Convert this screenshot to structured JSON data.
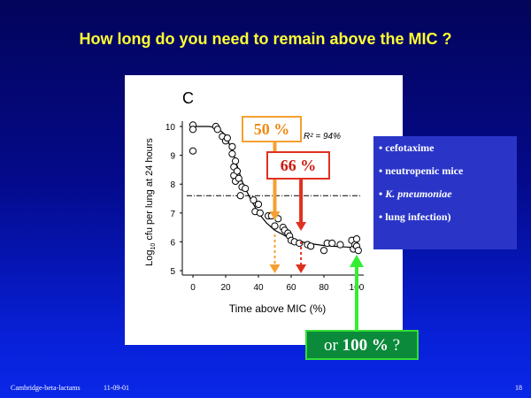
{
  "slide": {
    "title": "How long do you need to remain above the MIC ?",
    "footer_left": "Cambridge-beta-lactams",
    "footer_date": "11-09-01",
    "page_number": "18"
  },
  "callouts": {
    "box50": "50 %",
    "box66": "66 %",
    "box100_prefix": "or",
    "box100_value": "100 %",
    "box100_suffix": "?"
  },
  "info_items": [
    {
      "bullet": "•",
      "text": "cefotaxime",
      "italic": false
    },
    {
      "bullet": "•",
      "text": "neutropenic mice",
      "italic": false
    },
    {
      "bullet": "•",
      "text": "K. pneumoniae",
      "italic": true
    },
    {
      "bullet": "•",
      "text": "lung infection)",
      "italic": false
    }
  ],
  "colors": {
    "title": "#ffff33",
    "orange": "#f5a030",
    "red": "#e03020",
    "green": "#33dd33",
    "info_bg": "#2a35c8"
  },
  "chart_data": {
    "type": "scatter",
    "panel_label": "C",
    "xlabel": "Time above MIC (%)",
    "ylabel": "Log10 cfu per lung at 24 hours",
    "ylabel_main": "Log",
    "ylabel_sub": "10",
    "ylabel_rest": " cfu per lung at 24 hours",
    "annotation_r2": "R² = 94%",
    "xlim": [
      0,
      100
    ],
    "ylim": [
      5,
      10
    ],
    "xticks": [
      0,
      20,
      40,
      60,
      80,
      100
    ],
    "xtick_labels": [
      "0",
      "20",
      "40",
      "60",
      "80",
      "100"
    ],
    "yticks": [
      5,
      6,
      7,
      8,
      9,
      10
    ],
    "ytick_labels": [
      "5",
      "6",
      "7",
      "8",
      "9",
      "10"
    ],
    "stasis_line_y": 7.6,
    "markers": {
      "orange": 50,
      "red": 66,
      "green": 100
    },
    "points": [
      [
        0,
        10.05
      ],
      [
        0,
        9.9
      ],
      [
        0,
        9.15
      ],
      [
        14,
        10.0
      ],
      [
        15,
        9.9
      ],
      [
        18,
        9.65
      ],
      [
        20,
        9.5
      ],
      [
        21,
        9.6
      ],
      [
        24,
        9.3
      ],
      [
        24,
        9.05
      ],
      [
        25,
        8.6
      ],
      [
        25,
        8.3
      ],
      [
        26,
        8.8
      ],
      [
        26,
        8.1
      ],
      [
        27,
        8.45
      ],
      [
        28,
        8.2
      ],
      [
        29,
        7.6
      ],
      [
        30,
        7.9
      ],
      [
        32,
        7.85
      ],
      [
        37,
        7.45
      ],
      [
        38,
        7.05
      ],
      [
        40,
        7.3
      ],
      [
        41,
        7.0
      ],
      [
        46,
        6.9
      ],
      [
        48,
        6.9
      ],
      [
        50,
        6.55
      ],
      [
        52,
        6.8
      ],
      [
        55,
        6.5
      ],
      [
        56,
        6.4
      ],
      [
        58,
        6.3
      ],
      [
        59,
        6.2
      ],
      [
        60,
        6.05
      ],
      [
        62,
        6.0
      ],
      [
        65,
        5.95
      ],
      [
        70,
        5.9
      ],
      [
        72,
        5.85
      ],
      [
        80,
        5.7
      ],
      [
        82,
        5.95
      ],
      [
        85,
        5.95
      ],
      [
        90,
        5.9
      ],
      [
        97,
        6.05
      ],
      [
        98,
        5.75
      ],
      [
        99,
        5.9
      ],
      [
        100,
        5.85
      ],
      [
        100,
        6.1
      ],
      [
        101,
        5.7
      ]
    ],
    "fit_curve": [
      [
        0,
        10.0
      ],
      [
        10,
        10.0
      ],
      [
        15,
        9.95
      ],
      [
        20,
        9.7
      ],
      [
        25,
        9.0
      ],
      [
        30,
        8.1
      ],
      [
        35,
        7.5
      ],
      [
        40,
        7.0
      ],
      [
        45,
        6.65
      ],
      [
        50,
        6.4
      ],
      [
        60,
        6.1
      ],
      [
        70,
        5.95
      ],
      [
        80,
        5.87
      ],
      [
        90,
        5.83
      ],
      [
        100,
        5.8
      ]
    ]
  }
}
